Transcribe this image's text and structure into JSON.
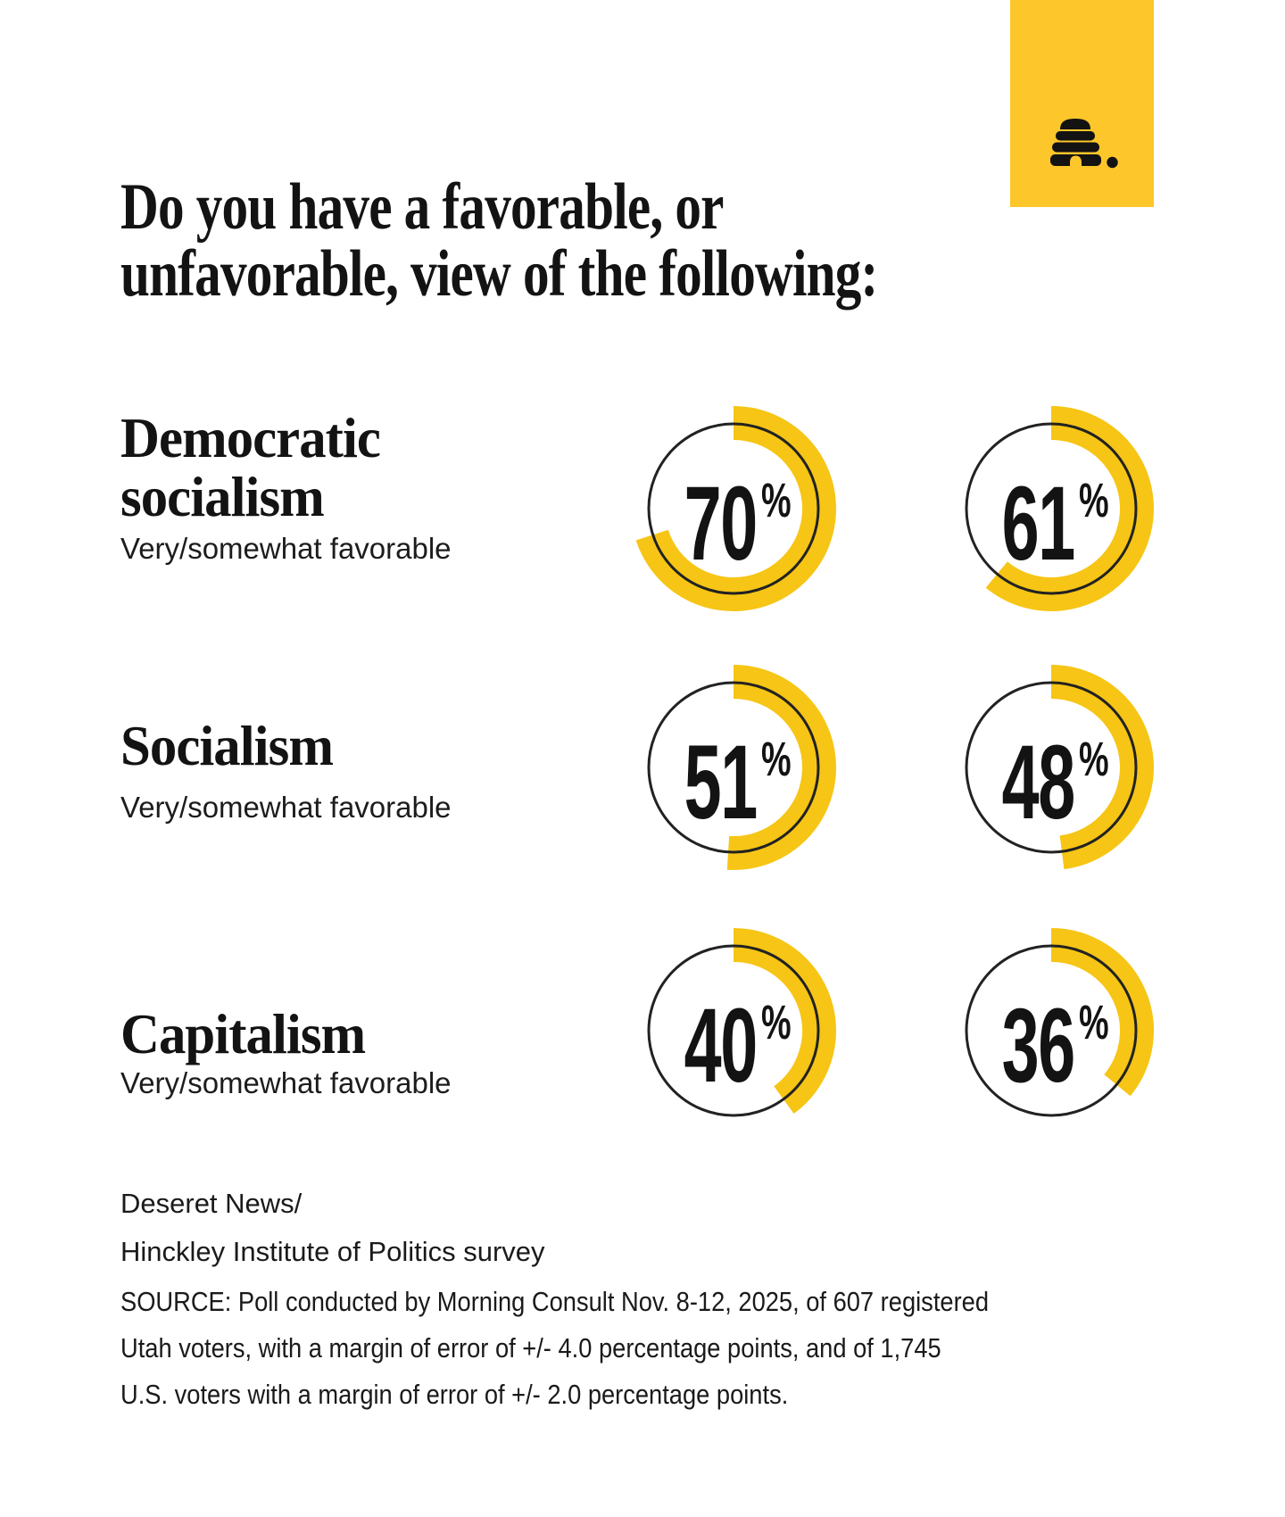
{
  "colors": {
    "background": "#ffffff",
    "text": "#131313",
    "logo_yellow": "#FDC62A",
    "arc_yellow": "#F6C515",
    "circle_outline": "#222222"
  },
  "logo": {
    "icon": "beehive-with-period"
  },
  "title": {
    "lines": [
      "Do you have a favorable, or",
      "unfavorable, view of the following:"
    ]
  },
  "unit": "%",
  "rows": [
    {
      "id": "democratic-socialism",
      "label_lines": [
        "Democratic",
        "socialism"
      ],
      "sublabel": "Very/somewhat favorable",
      "values": [
        70,
        61
      ]
    },
    {
      "id": "socialism",
      "label_lines": [
        "Socialism"
      ],
      "sublabel": "Very/somewhat favorable",
      "values": [
        51,
        48
      ]
    },
    {
      "id": "capitalism",
      "label_lines": [
        "Capitalism"
      ],
      "sublabel": "Very/somewhat favorable",
      "values": [
        40,
        36
      ]
    }
  ],
  "footer": {
    "attribution_lines": [
      "Deseret News/",
      "Hinckley Institute of Politics survey"
    ],
    "source_lines": [
      "SOURCE: Poll conducted by Morning Consult Nov. 8-12, 2025, of 607 registered",
      "Utah voters, with a margin of error of +/- 4.0 percentage points, and of 1,745",
      "U.S. voters with a margin of error of +/- 2.0 percentage points."
    ]
  },
  "chart_data": {
    "type": "donut",
    "title": "Do you have a favorable, or unfavorable, view of the following:",
    "categories": [
      "Democratic socialism",
      "Socialism",
      "Capitalism"
    ],
    "measure": "Very/somewhat favorable",
    "unit": "%",
    "series": [
      {
        "name": "column-1",
        "values": [
          70,
          51,
          40
        ]
      },
      {
        "name": "column-2",
        "values": [
          61,
          48,
          36
        ]
      }
    ],
    "range": [
      0,
      100
    ],
    "arc_start_angle": "12 o'clock",
    "arc_direction": "clockwise",
    "arc_color": "#F6C515",
    "legend": "none",
    "grid": "off"
  }
}
